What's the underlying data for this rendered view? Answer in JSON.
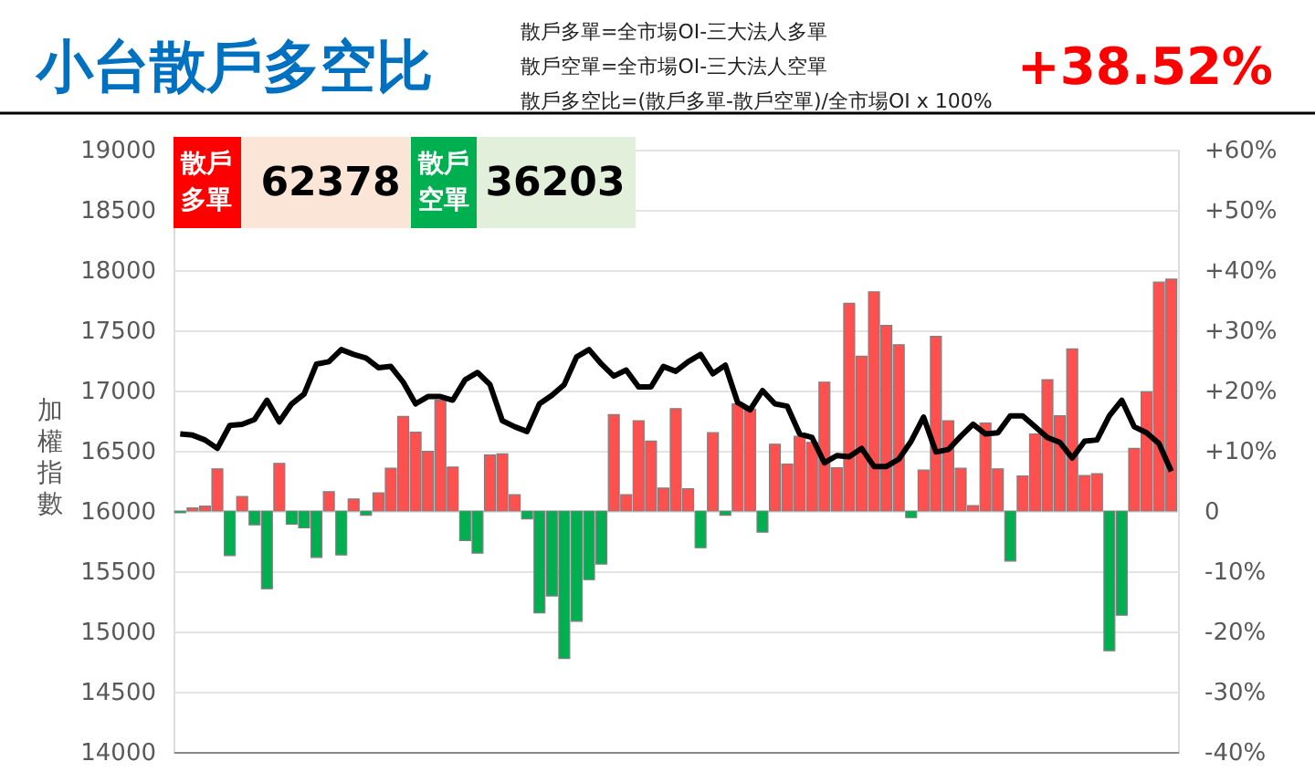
{
  "chart_data": {
    "type": "bar",
    "title": "小台散戶多空比",
    "ylabel": "加權指數",
    "annotations": [
      "散戶多單=全市場OI-三大法人多單",
      "散戶空單=全市場OI-三大法人空單",
      "散戶多空比=(散戶多單-散戶空單)/全市場OI x 100%",
      "+38.52%",
      "散戶",
      "多單",
      "62378",
      "散戶",
      "空單",
      "36203"
    ],
    "categories": [
      null,
      null,
      null,
      null,
      null,
      null,
      null,
      null,
      null,
      null,
      null,
      null,
      null,
      null,
      null,
      null,
      null,
      null,
      null,
      null,
      null,
      null,
      null,
      null,
      null,
      null,
      null,
      null,
      null,
      null,
      null,
      null,
      null,
      null,
      null,
      null,
      null,
      null,
      null,
      null,
      null,
      null,
      null,
      null,
      null,
      null,
      null,
      null,
      null,
      null,
      null,
      null,
      null,
      null,
      null,
      null,
      null,
      null,
      null,
      null,
      null,
      null,
      null,
      null,
      null,
      null,
      null,
      null,
      null,
      null,
      null,
      null,
      null,
      null,
      null,
      null,
      null,
      null,
      null,
      null,
      null
    ],
    "series": [
      {
        "axis": "y2",
        "values": [
          -0.3,
          0.5,
          0.8,
          7.0,
          -7.4,
          2.4,
          -2.3,
          -12.9,
          7.9,
          -2.2,
          -2.8,
          -7.7,
          3.2,
          -7.3,
          2.0,
          -0.7,
          3.0,
          7.1,
          15.7,
          13.1,
          9.9,
          18.4,
          7.3,
          -4.9,
          -7.0,
          9.3,
          9.5,
          2.7,
          -1.3,
          -16.9,
          -14.1,
          -24.5,
          -18.3,
          -11.4,
          -8.8,
          16.0,
          2.7,
          15.0,
          11.6,
          3.8,
          17.0,
          3.7,
          -6.1,
          13.0,
          -0.7,
          17.8,
          16.9,
          -3.5,
          11.1,
          7.8,
          12.4,
          11.4,
          21.4,
          7.2,
          34.5,
          25.7,
          36.4,
          30.8,
          27.6,
          -1.1,
          6.8,
          29.0,
          15.0,
          7.1,
          0.9,
          14.6,
          7.0,
          -8.3,
          5.8,
          12.8,
          21.8,
          15.8,
          26.9,
          5.9,
          6.2,
          -23.2,
          -17.3,
          10.4,
          19.8,
          38.0,
          38.5
        ],
        "colors": [
          "#00b050",
          "#ff5050",
          "#ff5050",
          "#ff5050",
          "#00b050",
          "#ff5050",
          "#00b050",
          "#00b050",
          "#ff5050",
          "#00b050",
          "#00b050",
          "#00b050",
          "#ff5050",
          "#00b050",
          "#ff5050",
          "#00b050",
          "#ff5050",
          "#ff5050",
          "#ff5050",
          "#ff5050",
          "#ff5050",
          "#ff5050",
          "#ff5050",
          "#00b050",
          "#00b050",
          "#ff5050",
          "#ff5050",
          "#ff5050",
          "#00b050",
          "#00b050",
          "#00b050",
          "#00b050",
          "#00b050",
          "#00b050",
          "#00b050",
          "#ff5050",
          "#ff5050",
          "#ff5050",
          "#ff5050",
          "#ff5050",
          "#ff5050",
          "#ff5050",
          "#00b050",
          "#ff5050",
          "#00b050",
          "#ff5050",
          "#ff5050",
          "#00b050",
          "#ff5050",
          "#ff5050",
          "#ff5050",
          "#ff5050",
          "#ff5050",
          "#ff5050",
          "#ff5050",
          "#ff5050",
          "#ff5050",
          "#ff5050",
          "#ff5050",
          "#00b050",
          "#ff5050",
          "#ff5050",
          "#ff5050",
          "#ff5050",
          "#ff5050",
          "#ff5050",
          "#ff5050",
          "#00b050",
          "#ff5050",
          "#ff5050",
          "#ff5050",
          "#ff5050",
          "#ff5050",
          "#ff5050",
          "#ff5050",
          "#00b050",
          "#00b050",
          "#ff5050",
          "#ff5050",
          "#ff5050",
          "#ff5050"
        ]
      },
      {
        "type": "line",
        "axis": "y",
        "color": "#000000",
        "values": [
          16640,
          16630,
          16590,
          16520,
          16710,
          16720,
          16760,
          16920,
          16740,
          16890,
          16970,
          17220,
          17240,
          17340,
          17300,
          17270,
          17190,
          17200,
          17070,
          16890,
          16950,
          16950,
          16920,
          17090,
          17150,
          17050,
          16750,
          16700,
          16660,
          16890,
          16960,
          17050,
          17280,
          17340,
          17220,
          17120,
          17170,
          17030,
          17030,
          17200,
          17160,
          17240,
          17300,
          17140,
          17210,
          16900,
          16840,
          17000,
          16890,
          16870,
          16640,
          16610,
          16400,
          16460,
          16450,
          16520,
          16370,
          16370,
          16430,
          16580,
          16780,
          16490,
          16510,
          16620,
          16720,
          16640,
          16650,
          16790,
          16790,
          16700,
          16610,
          16570,
          16440,
          16580,
          16590,
          16790,
          16920,
          16700,
          16650,
          16560,
          16330
        ]
      }
    ],
    "ylim": [
      14000,
      19000
    ],
    "yticks": [
      14000,
      14500,
      15000,
      15500,
      16000,
      16500,
      17000,
      17500,
      18000,
      18500,
      19000
    ],
    "y2lim": [
      -40,
      60
    ],
    "y2ticks": [
      {
        "value": -40,
        "label": "-40%"
      },
      {
        "value": -30,
        "label": "-30%"
      },
      {
        "value": -20,
        "label": "-20%"
      },
      {
        "value": -10,
        "label": "-10%"
      },
      0,
      {
        "value": 10,
        "label": "+10%"
      },
      {
        "value": 20,
        "label": "+20%"
      },
      {
        "value": 30,
        "label": "+30%"
      },
      {
        "value": 40,
        "label": "+40%"
      },
      {
        "value": 50,
        "label": "+50%"
      },
      {
        "value": 60,
        "label": "+60%"
      }
    ],
    "grid": "y",
    "tick_labels": "y",
    "marker": "none",
    "line_style": "solid"
  }
}
